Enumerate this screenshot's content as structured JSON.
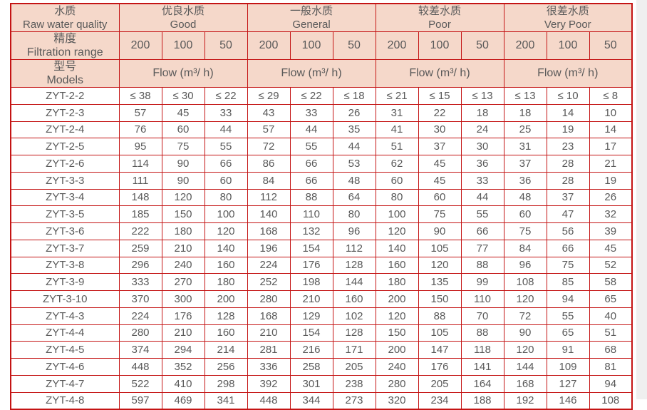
{
  "colors": {
    "border_red": "#c41414",
    "header_bg": "#f5d8ca",
    "text_gray": "#595959",
    "page_bg": "#ffffff",
    "right_strip_bg": "#efefef"
  },
  "header": {
    "quality": {
      "zh": "水质",
      "en": "Raw water quality"
    },
    "filtration": {
      "zh": "精度",
      "en": "Filtration range"
    },
    "models": {
      "zh": "型号",
      "en": "Models"
    },
    "groups": [
      {
        "zh": "优良水质",
        "en": "Good"
      },
      {
        "zh": "一般水质",
        "en": "General"
      },
      {
        "zh": "较差水质",
        "en": "Poor"
      },
      {
        "zh": "很差水质",
        "en": "Very Poor"
      }
    ],
    "filtration_values": [
      "200",
      "100",
      "50"
    ],
    "flow_label": "Flow (m³/ h)"
  },
  "rows": [
    {
      "model": "ZYT-2-2",
      "values": [
        "≤ 38",
        "≤ 30",
        "≤ 22",
        "≤ 29",
        "≤ 22",
        "≤ 18",
        "≤ 21",
        "≤ 15",
        "≤ 13",
        "≤ 13",
        "≤ 10",
        "≤ 8"
      ]
    },
    {
      "model": "ZYT-2-3",
      "values": [
        "57",
        "45",
        "33",
        "43",
        "33",
        "26",
        "31",
        "22",
        "18",
        "18",
        "14",
        "10"
      ]
    },
    {
      "model": "ZYT-2-4",
      "values": [
        "76",
        "60",
        "44",
        "57",
        "44",
        "35",
        "41",
        "30",
        "24",
        "25",
        "19",
        "14"
      ]
    },
    {
      "model": "ZYT-2-5",
      "values": [
        "95",
        "75",
        "55",
        "72",
        "55",
        "44",
        "51",
        "37",
        "30",
        "31",
        "23",
        "17"
      ]
    },
    {
      "model": "ZYT-2-6",
      "values": [
        "114",
        "90",
        "66",
        "86",
        "66",
        "53",
        "62",
        "45",
        "36",
        "37",
        "28",
        "21"
      ]
    },
    {
      "model": "ZYT-3-3",
      "values": [
        "111",
        "90",
        "60",
        "84",
        "66",
        "48",
        "60",
        "45",
        "33",
        "36",
        "28",
        "19"
      ]
    },
    {
      "model": "ZYT-3-4",
      "values": [
        "148",
        "120",
        "80",
        "112",
        "88",
        "64",
        "80",
        "60",
        "44",
        "48",
        "37",
        "26"
      ]
    },
    {
      "model": "ZYT-3-5",
      "values": [
        "185",
        "150",
        "100",
        "140",
        "110",
        "80",
        "100",
        "75",
        "55",
        "60",
        "47",
        "32"
      ]
    },
    {
      "model": "ZYT-3-6",
      "values": [
        "222",
        "180",
        "120",
        "168",
        "132",
        "96",
        "120",
        "90",
        "66",
        "75",
        "56",
        "39"
      ]
    },
    {
      "model": "ZYT-3-7",
      "values": [
        "259",
        "210",
        "140",
        "196",
        "154",
        "112",
        "140",
        "105",
        "77",
        "84",
        "66",
        "45"
      ]
    },
    {
      "model": "ZYT-3-8",
      "values": [
        "296",
        "240",
        "160",
        "224",
        "176",
        "128",
        "160",
        "120",
        "88",
        "96",
        "75",
        "52"
      ]
    },
    {
      "model": "ZYT-3-9",
      "values": [
        "333",
        "270",
        "180",
        "252",
        "198",
        "144",
        "180",
        "135",
        "99",
        "108",
        "85",
        "58"
      ]
    },
    {
      "model": "ZYT-3-10",
      "values": [
        "370",
        "300",
        "200",
        "280",
        "210",
        "160",
        "200",
        "150",
        "110",
        "120",
        "94",
        "65"
      ]
    },
    {
      "model": "ZYT-4-3",
      "values": [
        "224",
        "176",
        "128",
        "168",
        "129",
        "102",
        "120",
        "88",
        "70",
        "72",
        "55",
        "40"
      ]
    },
    {
      "model": "ZYT-4-4",
      "values": [
        "280",
        "210",
        "160",
        "210",
        "154",
        "128",
        "150",
        "105",
        "88",
        "90",
        "65",
        "51"
      ]
    },
    {
      "model": "ZYT-4-5",
      "values": [
        "374",
        "294",
        "214",
        "281",
        "216",
        "171",
        "200",
        "147",
        "118",
        "120",
        "91",
        "68"
      ]
    },
    {
      "model": "ZYT-4-6",
      "values": [
        "448",
        "352",
        "256",
        "336",
        "258",
        "205",
        "240",
        "176",
        "141",
        "144",
        "109",
        "81"
      ]
    },
    {
      "model": "ZYT-4-7",
      "values": [
        "522",
        "410",
        "298",
        "392",
        "301",
        "238",
        "280",
        "205",
        "164",
        "168",
        "127",
        "94"
      ]
    },
    {
      "model": "ZYT-4-8",
      "values": [
        "597",
        "469",
        "341",
        "448",
        "344",
        "273",
        "320",
        "234",
        "188",
        "192",
        "146",
        "108"
      ]
    }
  ]
}
